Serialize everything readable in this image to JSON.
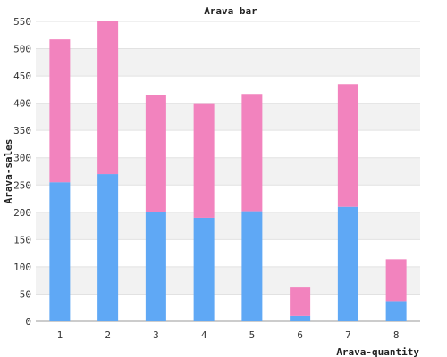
{
  "chart_data": {
    "type": "bar",
    "stacked": true,
    "title": "Arava bar",
    "xlabel": "Arava-quantity",
    "ylabel": "Arava-sales",
    "categories": [
      "1",
      "2",
      "3",
      "4",
      "5",
      "6",
      "7",
      "8"
    ],
    "series": [
      {
        "values": [
          255,
          270,
          200,
          190,
          202,
          10,
          210,
          37
        ],
        "color": "#5fa8f5"
      },
      {
        "values": [
          262,
          280,
          215,
          210,
          215,
          52,
          225,
          77
        ],
        "color": "#f283be"
      }
    ],
    "ylim": [
      0,
      550
    ],
    "yticks": [
      0,
      50,
      100,
      150,
      200,
      250,
      300,
      350,
      400,
      450,
      500,
      550
    ],
    "grid": true,
    "band_colors": [
      "#f2f2f2",
      "#ffffff"
    ]
  }
}
